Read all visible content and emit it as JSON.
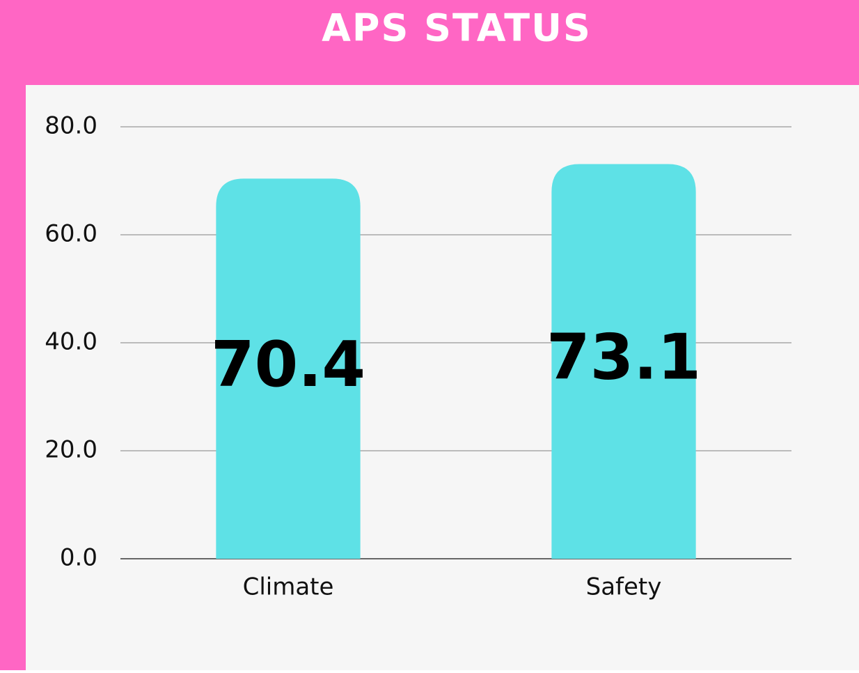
{
  "chart_data": {
    "type": "bar",
    "title": "APS STATUS",
    "categories": [
      "Climate",
      "Safety"
    ],
    "values": [
      70.4,
      73.1
    ],
    "color": "#5ee1e6",
    "ylim": [
      0,
      80
    ],
    "yticks": [
      {
        "value": 0,
        "label": "0.0"
      },
      {
        "value": 20,
        "label": "20.0"
      },
      {
        "value": 40,
        "label": "40.0"
      },
      {
        "value": 60,
        "label": "60.0"
      },
      {
        "value": 80,
        "label": "80.0"
      }
    ],
    "grid": true
  }
}
